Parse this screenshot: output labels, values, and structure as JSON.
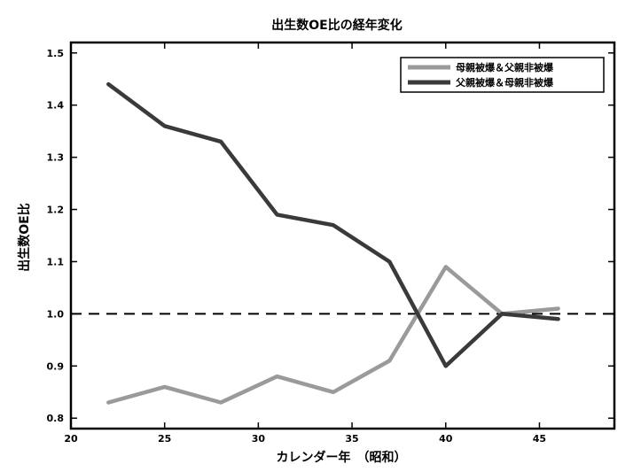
{
  "chart_data": {
    "type": "line",
    "title": "出生数OE比の経年変化",
    "xlabel": "カレンダー年　（昭和）",
    "ylabel": "出生数OE比",
    "xlim": [
      20,
      49
    ],
    "ylim": [
      0.78,
      1.52
    ],
    "xticks": [
      20,
      25,
      30,
      35,
      40,
      45
    ],
    "xtick_labels": [
      "20",
      "25",
      "30",
      "35",
      "40",
      "45"
    ],
    "yticks": [
      0.8,
      0.9,
      1.0,
      1.1,
      1.2,
      1.3,
      1.4,
      1.5
    ],
    "ytick_labels": [
      "0.8",
      "0.9",
      "1.0",
      "1.1",
      "1.2",
      "1.3",
      "1.4",
      "1.5"
    ],
    "grid": false,
    "legend_position": "top-right",
    "reference_line": {
      "y": 1.0,
      "style": "dashed"
    },
    "series": [
      {
        "name": "母親被爆＆父親非被爆",
        "color": "#9a9a9a",
        "x": [
          22,
          25,
          28,
          31,
          34,
          37,
          40,
          43,
          46
        ],
        "y": [
          0.83,
          0.86,
          0.83,
          0.88,
          0.85,
          0.91,
          1.09,
          1.0,
          1.01
        ]
      },
      {
        "name": "父親被爆＆母親非被爆",
        "color": "#3a3a3a",
        "x": [
          22,
          25,
          28,
          31,
          34,
          37,
          40,
          43,
          46
        ],
        "y": [
          1.44,
          1.36,
          1.33,
          1.19,
          1.17,
          1.1,
          0.9,
          1.0,
          0.99
        ]
      }
    ]
  }
}
